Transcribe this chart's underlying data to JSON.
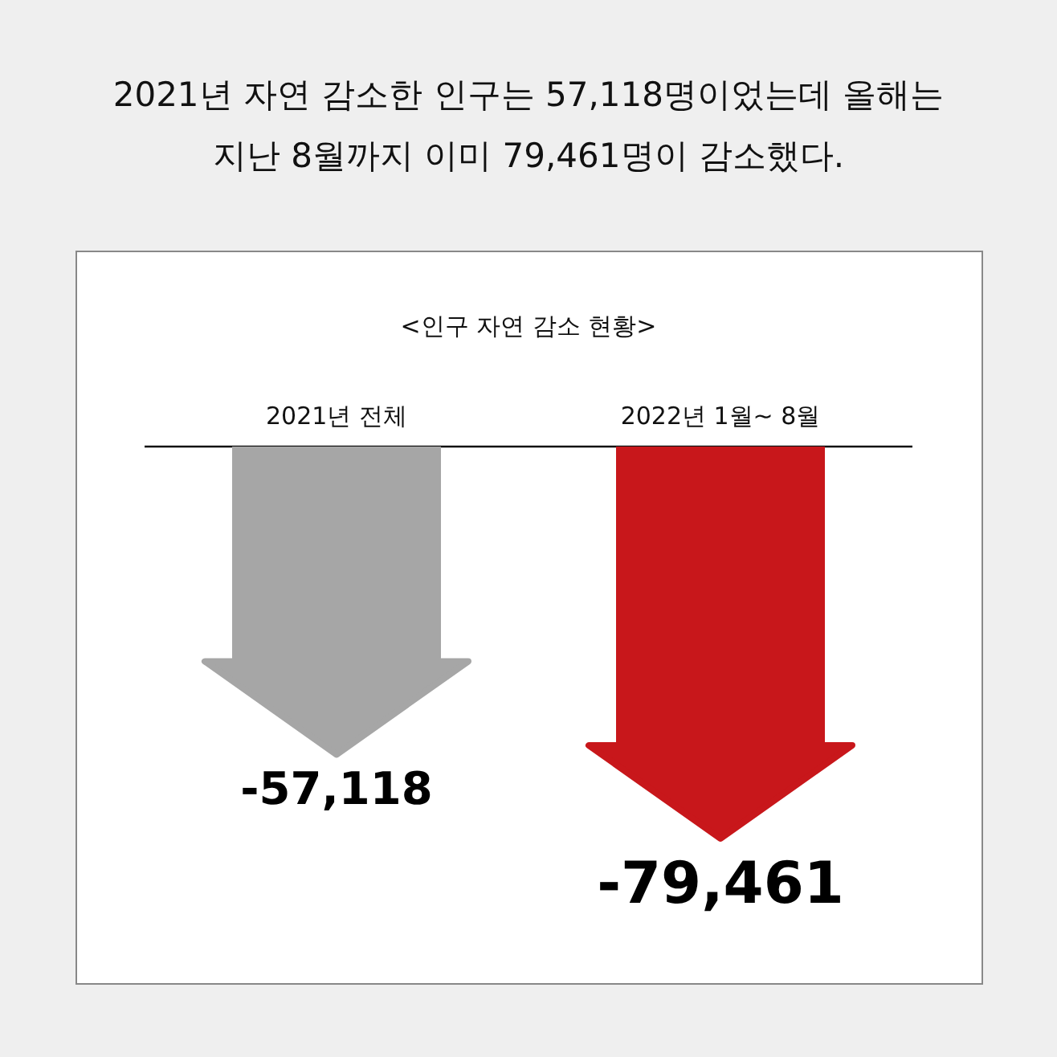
{
  "chart_data": {
    "type": "bar",
    "title": "2021년 자연 감소한 인구는 57,118명이었는데 올해는 지난 8월까지 이미 79,461명이 감소했다.",
    "subtitle": "<인구 자연 감소 현황>",
    "categories": [
      "2021년 전체",
      "2022년 1월~ 8월"
    ],
    "values": [
      -57118,
      -79461
    ],
    "colors": [
      "#a6a6a6",
      "#c8171b"
    ],
    "value_labels": [
      "-57,118",
      "-79,461"
    ]
  }
}
